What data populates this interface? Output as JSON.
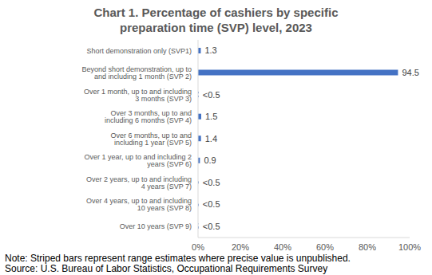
{
  "chart_data": {
    "type": "bar",
    "title": "Chart 1. Percentage of cashiers by specific preparation time (SVP) level, 2023",
    "orientation": "horizontal",
    "categories": [
      "Short demonstration only (SVP1)",
      "Beyond short demonstration, up to and including 1 month (SVP 2)",
      "Over 1 month, up to and including 3 months (SVP 3)",
      "Over 3 months, up to and including 6 months (SVP 4)",
      "Over 6 months, up to and including 1 year (SVP 5)",
      "Over 1 year, up to and including 2 years (SVP 6)",
      "Over 2 years, up to and including 4 years (SVP 7)",
      "Over 4 years, up to and including 10 years (SVP 8)",
      "Over 10 years (SVP 9)"
    ],
    "values": [
      1.3,
      94.5,
      0.3,
      1.5,
      1.4,
      0.9,
      0.3,
      0.3,
      0.3
    ],
    "value_labels": [
      "1.3",
      "94.5",
      "<0.5",
      "1.5",
      "1.4",
      "0.9",
      "<0.5",
      "<0.5",
      "<0.5"
    ],
    "data_labels": true,
    "color": "#4472c4",
    "xlim": [
      0,
      100
    ],
    "xticks": [
      {
        "value": 0,
        "label": "0%"
      },
      {
        "value": 20,
        "label": "20%"
      },
      {
        "value": 40,
        "label": "40%"
      },
      {
        "value": 60,
        "label": "60%"
      },
      {
        "value": 80,
        "label": "80%"
      },
      {
        "value": 100,
        "label": "100%"
      }
    ],
    "grid": false,
    "annotations": [
      "Note: Striped bars represent range estimates where precise value is unpublished.",
      "Source: U.S. Bureau of Labor Statistics, Occupational Requirements Survey"
    ]
  }
}
